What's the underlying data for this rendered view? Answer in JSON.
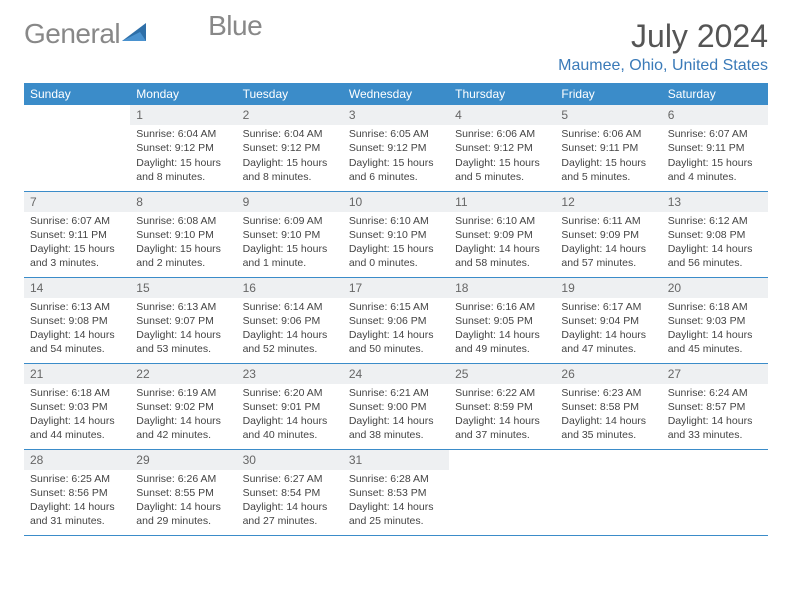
{
  "logo": {
    "text_general": "General",
    "text_blue": "Blue"
  },
  "title": "July 2024",
  "location": "Maumee, Ohio, United States",
  "colors": {
    "header_bg": "#3b8cc9",
    "header_text": "#ffffff",
    "daynum_bg": "#eef0f2",
    "daynum_text": "#666666",
    "border": "#3b8cc9",
    "body_text": "#444444",
    "logo_gray": "#888888",
    "logo_blue": "#3a7ab8"
  },
  "weekdays": [
    "Sunday",
    "Monday",
    "Tuesday",
    "Wednesday",
    "Thursday",
    "Friday",
    "Saturday"
  ],
  "weeks": [
    [
      {
        "n": "",
        "sunrise": "",
        "sunset": "",
        "daylight": ""
      },
      {
        "n": "1",
        "sunrise": "Sunrise: 6:04 AM",
        "sunset": "Sunset: 9:12 PM",
        "daylight": "Daylight: 15 hours and 8 minutes."
      },
      {
        "n": "2",
        "sunrise": "Sunrise: 6:04 AM",
        "sunset": "Sunset: 9:12 PM",
        "daylight": "Daylight: 15 hours and 8 minutes."
      },
      {
        "n": "3",
        "sunrise": "Sunrise: 6:05 AM",
        "sunset": "Sunset: 9:12 PM",
        "daylight": "Daylight: 15 hours and 6 minutes."
      },
      {
        "n": "4",
        "sunrise": "Sunrise: 6:06 AM",
        "sunset": "Sunset: 9:12 PM",
        "daylight": "Daylight: 15 hours and 5 minutes."
      },
      {
        "n": "5",
        "sunrise": "Sunrise: 6:06 AM",
        "sunset": "Sunset: 9:11 PM",
        "daylight": "Daylight: 15 hours and 5 minutes."
      },
      {
        "n": "6",
        "sunrise": "Sunrise: 6:07 AM",
        "sunset": "Sunset: 9:11 PM",
        "daylight": "Daylight: 15 hours and 4 minutes."
      }
    ],
    [
      {
        "n": "7",
        "sunrise": "Sunrise: 6:07 AM",
        "sunset": "Sunset: 9:11 PM",
        "daylight": "Daylight: 15 hours and 3 minutes."
      },
      {
        "n": "8",
        "sunrise": "Sunrise: 6:08 AM",
        "sunset": "Sunset: 9:10 PM",
        "daylight": "Daylight: 15 hours and 2 minutes."
      },
      {
        "n": "9",
        "sunrise": "Sunrise: 6:09 AM",
        "sunset": "Sunset: 9:10 PM",
        "daylight": "Daylight: 15 hours and 1 minute."
      },
      {
        "n": "10",
        "sunrise": "Sunrise: 6:10 AM",
        "sunset": "Sunset: 9:10 PM",
        "daylight": "Daylight: 15 hours and 0 minutes."
      },
      {
        "n": "11",
        "sunrise": "Sunrise: 6:10 AM",
        "sunset": "Sunset: 9:09 PM",
        "daylight": "Daylight: 14 hours and 58 minutes."
      },
      {
        "n": "12",
        "sunrise": "Sunrise: 6:11 AM",
        "sunset": "Sunset: 9:09 PM",
        "daylight": "Daylight: 14 hours and 57 minutes."
      },
      {
        "n": "13",
        "sunrise": "Sunrise: 6:12 AM",
        "sunset": "Sunset: 9:08 PM",
        "daylight": "Daylight: 14 hours and 56 minutes."
      }
    ],
    [
      {
        "n": "14",
        "sunrise": "Sunrise: 6:13 AM",
        "sunset": "Sunset: 9:08 PM",
        "daylight": "Daylight: 14 hours and 54 minutes."
      },
      {
        "n": "15",
        "sunrise": "Sunrise: 6:13 AM",
        "sunset": "Sunset: 9:07 PM",
        "daylight": "Daylight: 14 hours and 53 minutes."
      },
      {
        "n": "16",
        "sunrise": "Sunrise: 6:14 AM",
        "sunset": "Sunset: 9:06 PM",
        "daylight": "Daylight: 14 hours and 52 minutes."
      },
      {
        "n": "17",
        "sunrise": "Sunrise: 6:15 AM",
        "sunset": "Sunset: 9:06 PM",
        "daylight": "Daylight: 14 hours and 50 minutes."
      },
      {
        "n": "18",
        "sunrise": "Sunrise: 6:16 AM",
        "sunset": "Sunset: 9:05 PM",
        "daylight": "Daylight: 14 hours and 49 minutes."
      },
      {
        "n": "19",
        "sunrise": "Sunrise: 6:17 AM",
        "sunset": "Sunset: 9:04 PM",
        "daylight": "Daylight: 14 hours and 47 minutes."
      },
      {
        "n": "20",
        "sunrise": "Sunrise: 6:18 AM",
        "sunset": "Sunset: 9:03 PM",
        "daylight": "Daylight: 14 hours and 45 minutes."
      }
    ],
    [
      {
        "n": "21",
        "sunrise": "Sunrise: 6:18 AM",
        "sunset": "Sunset: 9:03 PM",
        "daylight": "Daylight: 14 hours and 44 minutes."
      },
      {
        "n": "22",
        "sunrise": "Sunrise: 6:19 AM",
        "sunset": "Sunset: 9:02 PM",
        "daylight": "Daylight: 14 hours and 42 minutes."
      },
      {
        "n": "23",
        "sunrise": "Sunrise: 6:20 AM",
        "sunset": "Sunset: 9:01 PM",
        "daylight": "Daylight: 14 hours and 40 minutes."
      },
      {
        "n": "24",
        "sunrise": "Sunrise: 6:21 AM",
        "sunset": "Sunset: 9:00 PM",
        "daylight": "Daylight: 14 hours and 38 minutes."
      },
      {
        "n": "25",
        "sunrise": "Sunrise: 6:22 AM",
        "sunset": "Sunset: 8:59 PM",
        "daylight": "Daylight: 14 hours and 37 minutes."
      },
      {
        "n": "26",
        "sunrise": "Sunrise: 6:23 AM",
        "sunset": "Sunset: 8:58 PM",
        "daylight": "Daylight: 14 hours and 35 minutes."
      },
      {
        "n": "27",
        "sunrise": "Sunrise: 6:24 AM",
        "sunset": "Sunset: 8:57 PM",
        "daylight": "Daylight: 14 hours and 33 minutes."
      }
    ],
    [
      {
        "n": "28",
        "sunrise": "Sunrise: 6:25 AM",
        "sunset": "Sunset: 8:56 PM",
        "daylight": "Daylight: 14 hours and 31 minutes."
      },
      {
        "n": "29",
        "sunrise": "Sunrise: 6:26 AM",
        "sunset": "Sunset: 8:55 PM",
        "daylight": "Daylight: 14 hours and 29 minutes."
      },
      {
        "n": "30",
        "sunrise": "Sunrise: 6:27 AM",
        "sunset": "Sunset: 8:54 PM",
        "daylight": "Daylight: 14 hours and 27 minutes."
      },
      {
        "n": "31",
        "sunrise": "Sunrise: 6:28 AM",
        "sunset": "Sunset: 8:53 PM",
        "daylight": "Daylight: 14 hours and 25 minutes."
      },
      {
        "n": "",
        "sunrise": "",
        "sunset": "",
        "daylight": ""
      },
      {
        "n": "",
        "sunrise": "",
        "sunset": "",
        "daylight": ""
      },
      {
        "n": "",
        "sunrise": "",
        "sunset": "",
        "daylight": ""
      }
    ]
  ]
}
